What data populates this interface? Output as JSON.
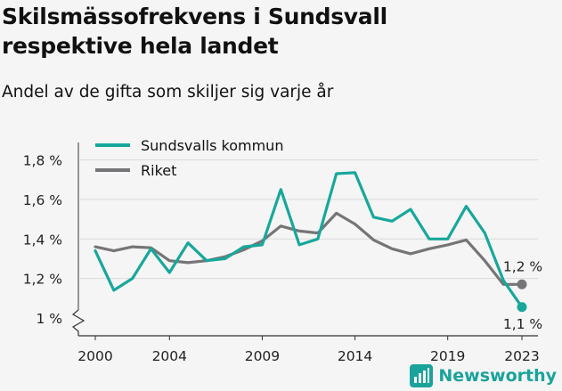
{
  "header": {
    "title_line1": "Skilsmässofrekvens i Sundsvall",
    "title_line2": "respektive hela landet",
    "subtitle": "Andel av de gifta som skiljer sig varje år"
  },
  "brand": {
    "name": "Newsworthy"
  },
  "colors": {
    "sundsvall": "#18a79b",
    "riket": "#757577",
    "axis": "#333333",
    "grid": "#d9d9d9",
    "background": "#f5f5f5"
  },
  "chart_data": {
    "type": "line",
    "x": [
      2000,
      2001,
      2002,
      2003,
      2004,
      2005,
      2006,
      2007,
      2008,
      2009,
      2010,
      2011,
      2012,
      2013,
      2014,
      2015,
      2016,
      2017,
      2018,
      2019,
      2020,
      2021,
      2022,
      2023
    ],
    "series": [
      {
        "name": "Sundsvalls kommun",
        "values": [
          1.34,
          1.14,
          1.2,
          1.35,
          1.23,
          1.38,
          1.29,
          1.3,
          1.36,
          1.37,
          1.65,
          1.37,
          1.4,
          1.73,
          1.735,
          1.51,
          1.49,
          1.55,
          1.4,
          1.4,
          1.565,
          1.43,
          1.19,
          1.055
        ]
      },
      {
        "name": "Riket",
        "values": [
          1.36,
          1.34,
          1.36,
          1.355,
          1.29,
          1.28,
          1.29,
          1.31,
          1.345,
          1.39,
          1.465,
          1.44,
          1.43,
          1.53,
          1.475,
          1.395,
          1.35,
          1.325,
          1.35,
          1.37,
          1.395,
          1.29,
          1.17,
          1.17
        ]
      }
    ],
    "end_labels": [
      "1,1 %",
      "1,2 %"
    ],
    "y_ticks": [
      1.0,
      1.2,
      1.4,
      1.6,
      1.8
    ],
    "y_tick_labels": [
      "1 %",
      "1,2 %",
      "1,4 %",
      "1,6 %",
      "1,8 %"
    ],
    "x_ticks": [
      2000,
      2004,
      2009,
      2014,
      2019,
      2023
    ],
    "x_tick_labels": [
      "2000",
      "2004",
      "2009",
      "2014",
      "2019",
      "2023"
    ],
    "ylim": [
      1.0,
      1.9
    ],
    "y_axis_break": true,
    "grid": true,
    "legend_position": "top-left"
  }
}
